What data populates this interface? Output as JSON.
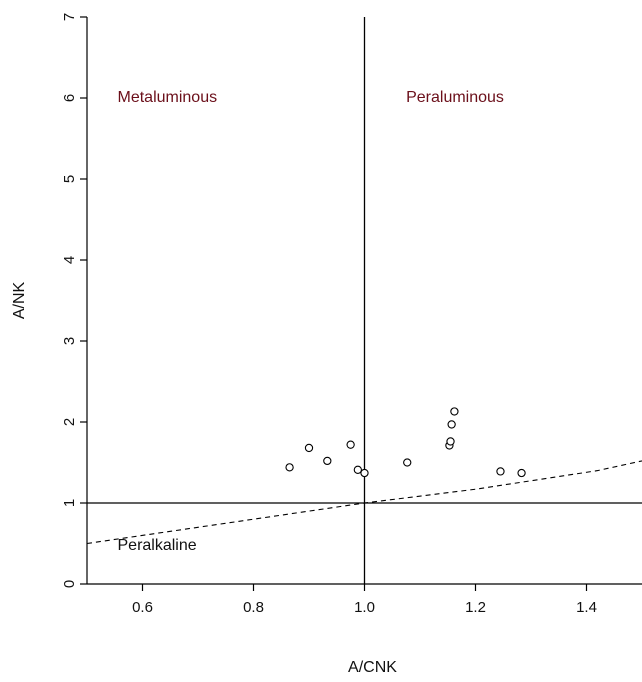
{
  "chart_data": {
    "type": "scatter",
    "xlabel": "A/CNK",
    "ylabel": "A/NK",
    "xlim": [
      0.5,
      1.5
    ],
    "ylim": [
      0,
      7
    ],
    "x_ticks": [
      0.6,
      0.8,
      1.0,
      1.2,
      1.4
    ],
    "x_tick_labels": [
      "0.6",
      "0.8",
      "1.0",
      "1.2",
      "1.4"
    ],
    "y_ticks": [
      0,
      1,
      2,
      3,
      4,
      5,
      6,
      7
    ],
    "y_tick_labels": [
      "0",
      "1",
      "2",
      "3",
      "4",
      "5",
      "6",
      "7"
    ],
    "grid": false,
    "points": [
      {
        "x": 0.865,
        "y": 1.44
      },
      {
        "x": 0.9,
        "y": 1.68
      },
      {
        "x": 0.933,
        "y": 1.52
      },
      {
        "x": 0.975,
        "y": 1.72
      },
      {
        "x": 0.988,
        "y": 1.41
      },
      {
        "x": 1.0,
        "y": 1.37
      },
      {
        "x": 1.077,
        "y": 1.5
      },
      {
        "x": 1.153,
        "y": 1.71
      },
      {
        "x": 1.155,
        "y": 1.76
      },
      {
        "x": 1.157,
        "y": 1.97
      },
      {
        "x": 1.162,
        "y": 2.13
      },
      {
        "x": 1.245,
        "y": 1.39
      },
      {
        "x": 1.283,
        "y": 1.37
      }
    ],
    "reference_lines": [
      {
        "orientation": "vertical",
        "x": 1.0,
        "style": "solid"
      },
      {
        "orientation": "horizontal",
        "y": 1.0,
        "style": "solid"
      },
      {
        "style": "dashed",
        "points": [
          [
            0.5,
            0.5
          ],
          [
            1.0,
            1.0
          ],
          [
            1.2,
            1.17
          ],
          [
            1.42,
            1.4
          ],
          [
            1.5,
            1.52
          ]
        ]
      }
    ],
    "region_labels": [
      {
        "text": "Metaluminous",
        "x": 0.6,
        "y": 5.95,
        "color": "#6b0f1a"
      },
      {
        "text": "Peraluminous",
        "x": 1.12,
        "y": 5.95,
        "color": "#6b0f1a"
      },
      {
        "text": "Peralkaline",
        "x": 0.6,
        "y": 0.42,
        "color": "#111111"
      }
    ]
  }
}
